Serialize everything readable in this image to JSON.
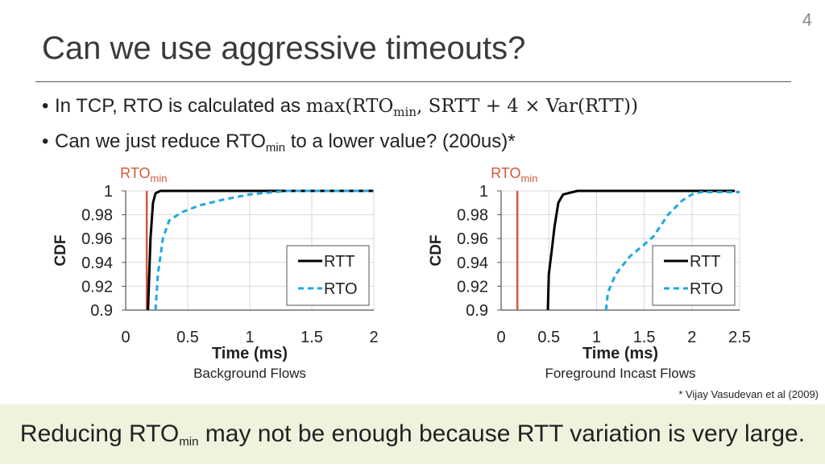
{
  "page_number": "4",
  "title": "Can we use aggressive timeouts?",
  "bullets": {
    "b1_text": "In TCP, RTO is calculated as ",
    "b1_math_pre": "max(RTO",
    "b1_math_sub": "min",
    "b1_math_post": ", SRTT + 4 × Var(RTT))",
    "b2_pre": "Can we just reduce RTO",
    "b2_sub": "min",
    "b2_post": " to a lower value? (200us)*"
  },
  "citation": "* Vijay Vasudevan et al (2009)",
  "banner": {
    "pre": "Reducing RTO",
    "sub": "min",
    "post": " may not be enough because RTT variation is very large."
  },
  "colors": {
    "rtt": "#000000",
    "rto": "#1fa8e0",
    "rtomin": "#d0593a",
    "banner_bg": "#eef3dd"
  },
  "chart_data": [
    {
      "type": "line",
      "subtitle": "Background Flows",
      "xlabel": "Time (ms)",
      "ylabel": "CDF",
      "xlim": [
        0,
        2
      ],
      "ylim": [
        0.9,
        1
      ],
      "xticks": [
        "0",
        "0.5",
        "1",
        "1.5",
        "2"
      ],
      "yticks": [
        "0.9",
        "0.92",
        "0.94",
        "0.96",
        "0.98",
        "1"
      ],
      "grid": true,
      "legend": "inside-right",
      "rtomin": {
        "label": "RTO",
        "label_sub": "min",
        "x": 0.17
      },
      "series": [
        {
          "name": "RTT",
          "style": "solid",
          "x": [
            0.18,
            0.2,
            0.22,
            0.24,
            0.28,
            2.0
          ],
          "y": [
            0.9,
            0.96,
            0.99,
            0.998,
            1.0,
            1.0
          ]
        },
        {
          "name": "RTO",
          "style": "dashed",
          "x": [
            0.24,
            0.26,
            0.3,
            0.35,
            0.45,
            0.6,
            0.8,
            1.0,
            1.3,
            2.0
          ],
          "y": [
            0.9,
            0.93,
            0.96,
            0.975,
            0.982,
            0.988,
            0.993,
            0.997,
            1.0,
            1.0
          ]
        }
      ]
    },
    {
      "type": "line",
      "subtitle": "Foreground Incast Flows",
      "xlabel": "Time (ms)",
      "ylabel": "CDF",
      "xlim": [
        0,
        2.5
      ],
      "ylim": [
        0.9,
        1
      ],
      "xticks": [
        "0",
        "0.5",
        "1",
        "1.5",
        "2",
        "2.5"
      ],
      "yticks": [
        "0.9",
        "0.92",
        "0.94",
        "0.96",
        "0.98",
        "1"
      ],
      "grid": true,
      "legend": "inside-right",
      "rtomin": {
        "label": "RTO",
        "label_sub": "min",
        "x": 0.17
      },
      "series": [
        {
          "name": "RTT",
          "style": "solid",
          "x": [
            0.49,
            0.5,
            0.53,
            0.56,
            0.6,
            0.65,
            0.8,
            1.0,
            2.45
          ],
          "y": [
            0.9,
            0.93,
            0.95,
            0.97,
            0.99,
            0.997,
            1.0,
            1.0,
            1.0
          ]
        },
        {
          "name": "RTO",
          "style": "dashed",
          "x": [
            1.1,
            1.12,
            1.2,
            1.35,
            1.5,
            1.6,
            1.75,
            1.9,
            2.0,
            2.1,
            2.5
          ],
          "y": [
            0.9,
            0.915,
            0.93,
            0.945,
            0.955,
            0.962,
            0.98,
            0.992,
            0.997,
            0.999,
            0.999
          ]
        }
      ]
    }
  ]
}
